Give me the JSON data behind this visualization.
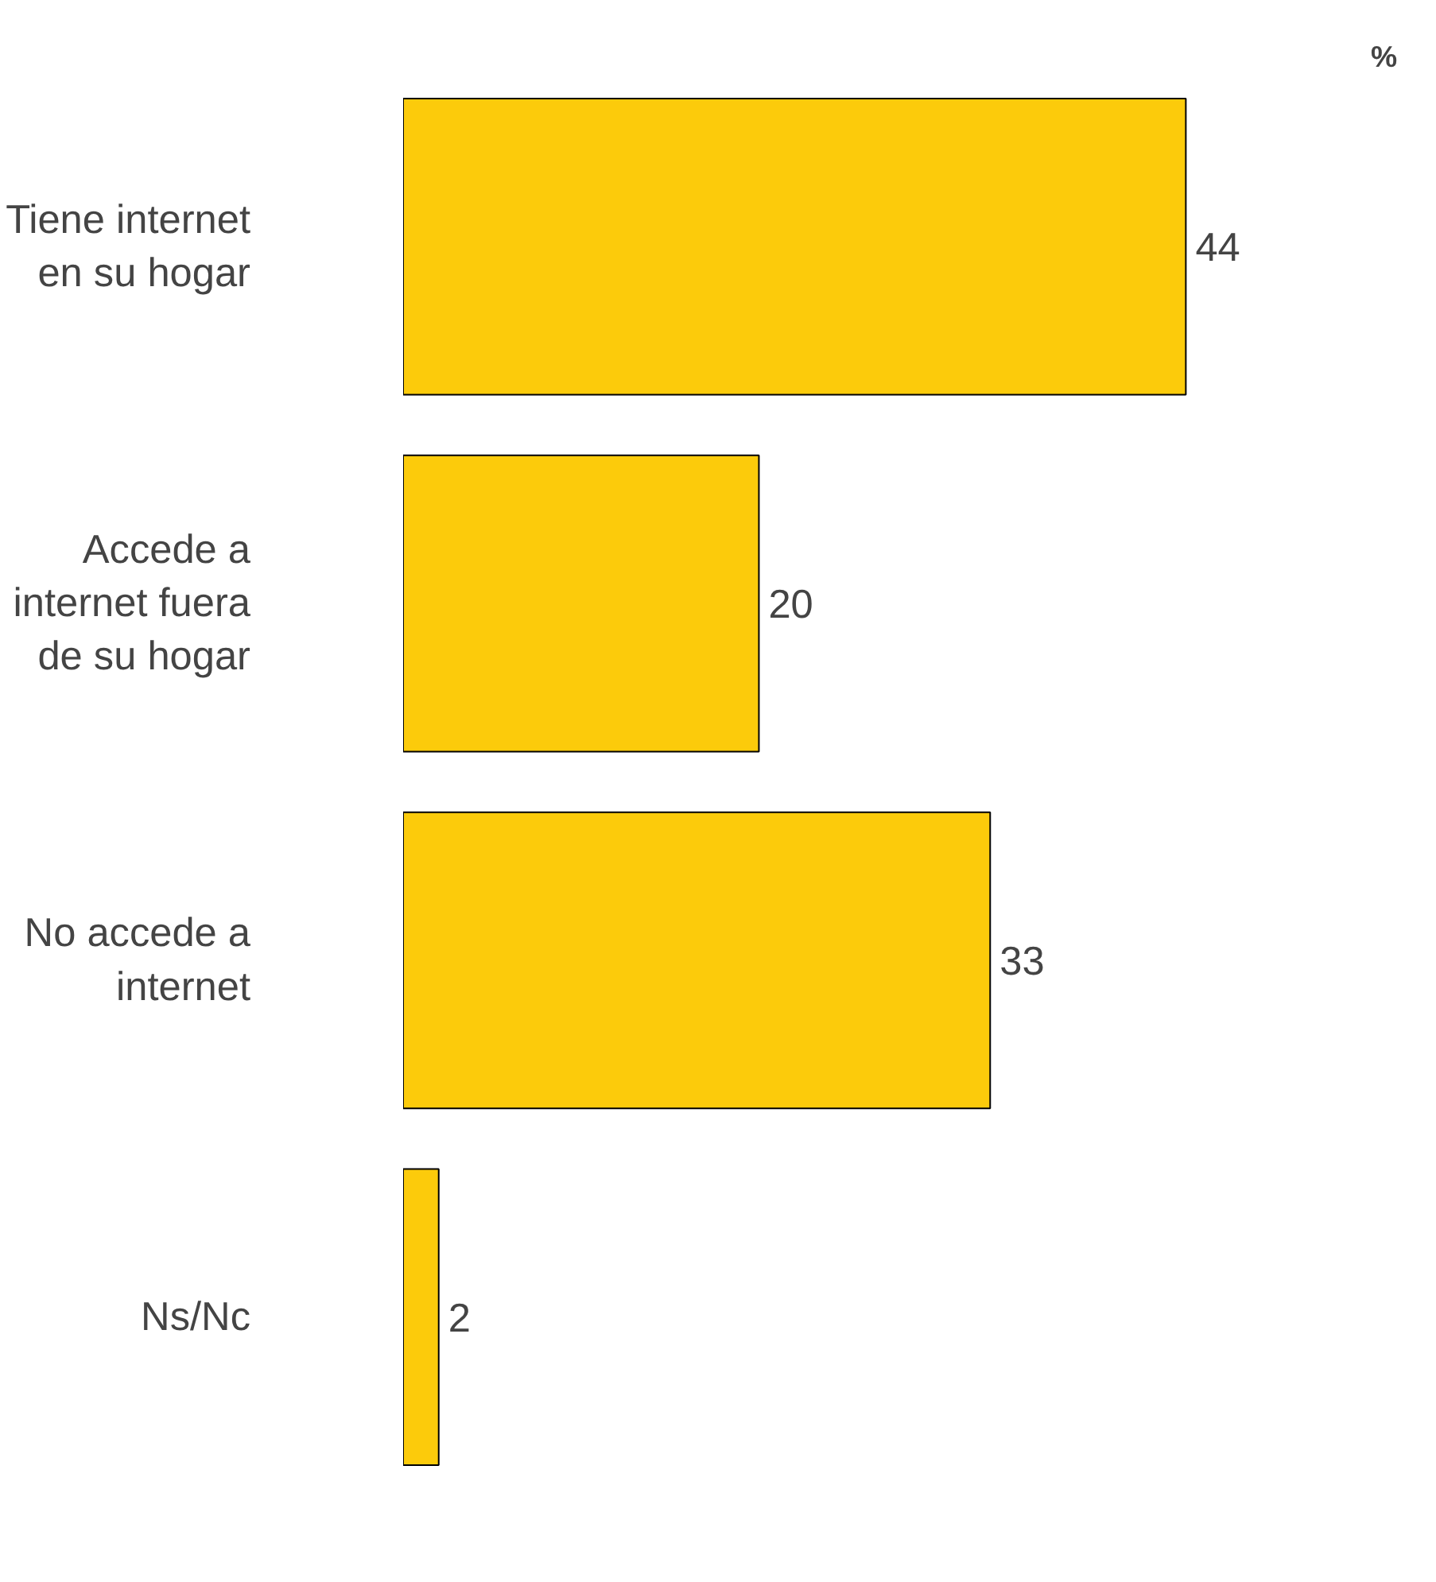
{
  "chart_data": {
    "type": "bar",
    "orientation": "horizontal",
    "categories": [
      "Tiene internet en su hogar",
      "Accede a internet fuera de su hogar",
      "No accede a internet",
      "Ns/Nc"
    ],
    "values": [
      44,
      20,
      33,
      2
    ],
    "color": "#fccb0b",
    "data_labels": true,
    "grid": false,
    "annotations": [
      "%"
    ]
  }
}
